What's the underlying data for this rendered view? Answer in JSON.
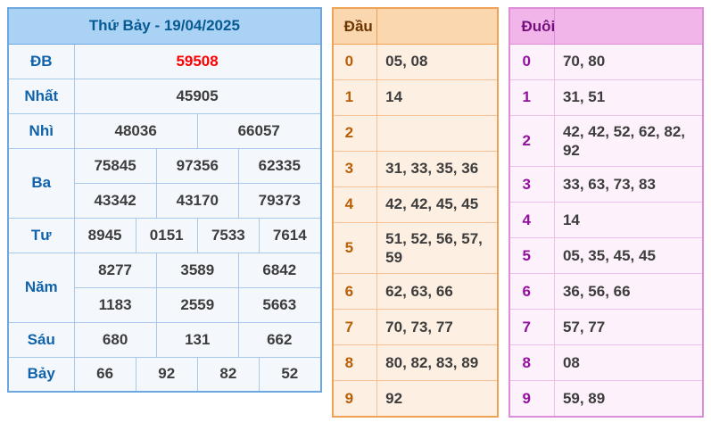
{
  "colors": {
    "left-border-outer": "#6da7e0",
    "left-border-inner": "#a9c9ec",
    "left-header-bg": "#a9d2f5",
    "left-header-text": "#075b92",
    "left-row-bg": "#f4f8fd",
    "left-label-text": "#1063ab",
    "value-text": "#3d3d3d",
    "special-red": "#ff0000",
    "dau-border-outer": "#f0a254",
    "dau-border-inner": "#f4c294",
    "dau-header-bg": "#fad7ae",
    "dau-header-text": "#6b3400",
    "dau-row-bg": "#fdf0e2",
    "dau-digit-text": "#b85e04",
    "duoi-border-outer": "#dc8fd8",
    "duoi-border-inner": "#eec0e8",
    "duoi-header-bg": "#f2b5e9",
    "duoi-header-text": "#76107d",
    "duoi-row-bg": "#fdf2fb",
    "duoi-digit-text": "#930f9e"
  },
  "results": {
    "title": "Thứ Bảy - 19/04/2025",
    "db": {
      "label": "ĐB",
      "values": [
        "59508"
      ]
    },
    "nhat": {
      "label": "Nhất",
      "values": [
        "45905"
      ]
    },
    "nhi": {
      "label": "Nhì",
      "values": [
        "48036",
        "66057"
      ]
    },
    "ba": {
      "label": "Ba",
      "row1": [
        "75845",
        "97356",
        "62335"
      ],
      "row2": [
        "43342",
        "43170",
        "79373"
      ]
    },
    "tu": {
      "label": "Tư",
      "values": [
        "8945",
        "0151",
        "7533",
        "7614"
      ]
    },
    "nam": {
      "label": "Năm",
      "row1": [
        "8277",
        "3589",
        "6842"
      ],
      "row2": [
        "1183",
        "2559",
        "5663"
      ]
    },
    "sau": {
      "label": "Sáu",
      "values": [
        "680",
        "131",
        "662"
      ]
    },
    "bay": {
      "label": "Bảy",
      "values": [
        "66",
        "92",
        "82",
        "52"
      ]
    }
  },
  "dau": {
    "header": "Đầu",
    "rows": [
      {
        "d": "0",
        "v": "05, 08"
      },
      {
        "d": "1",
        "v": "14"
      },
      {
        "d": "2",
        "v": ""
      },
      {
        "d": "3",
        "v": "31, 33, 35, 36"
      },
      {
        "d": "4",
        "v": "42, 42, 45, 45"
      },
      {
        "d": "5",
        "v": "51, 52, 56, 57, 59"
      },
      {
        "d": "6",
        "v": "62, 63, 66"
      },
      {
        "d": "7",
        "v": "70, 73, 77"
      },
      {
        "d": "8",
        "v": "80, 82, 83, 89"
      },
      {
        "d": "9",
        "v": "92"
      }
    ]
  },
  "duoi": {
    "header": "Đuôi",
    "rows": [
      {
        "d": "0",
        "v": "70, 80"
      },
      {
        "d": "1",
        "v": "31, 51"
      },
      {
        "d": "2",
        "v": "42, 42, 52, 62, 82, 92"
      },
      {
        "d": "3",
        "v": "33, 63, 73, 83"
      },
      {
        "d": "4",
        "v": "14"
      },
      {
        "d": "5",
        "v": "05, 35, 45, 45"
      },
      {
        "d": "6",
        "v": "36, 56, 66"
      },
      {
        "d": "7",
        "v": "57, 77"
      },
      {
        "d": "8",
        "v": "08"
      },
      {
        "d": "9",
        "v": "59, 89"
      }
    ]
  }
}
